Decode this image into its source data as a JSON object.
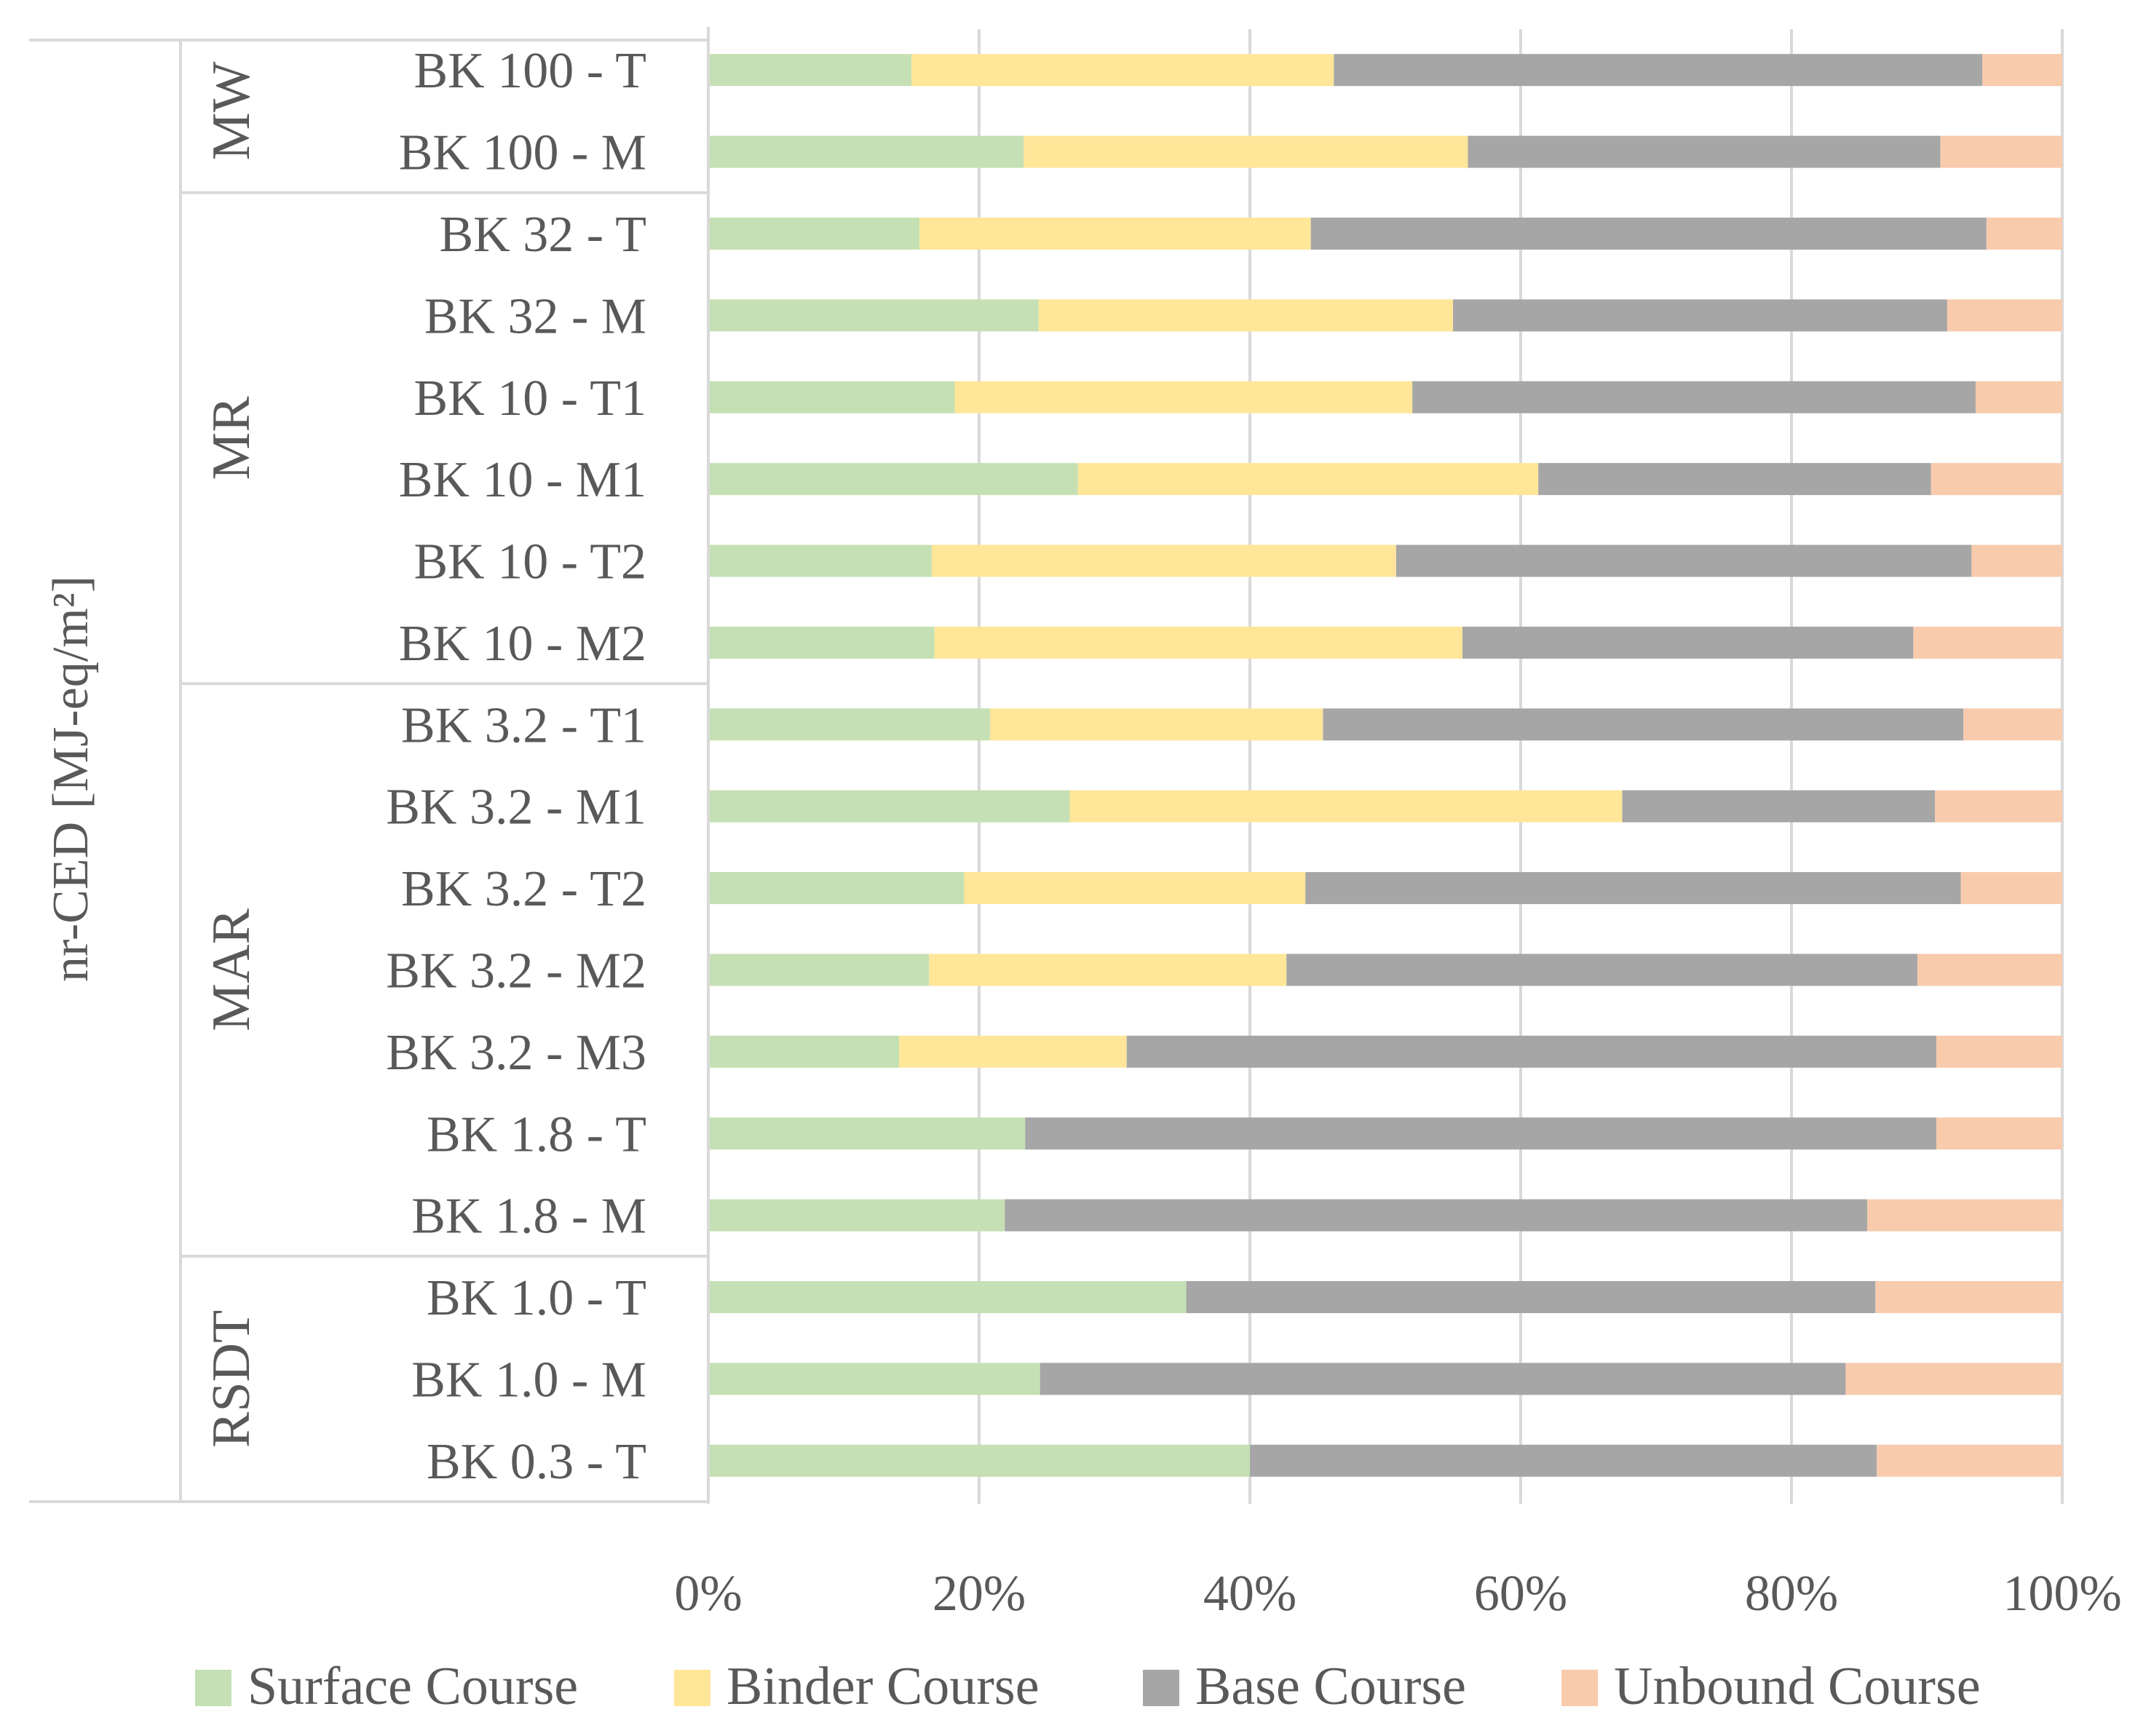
{
  "chart_data": {
    "type": "bar",
    "orientation": "horizontal",
    "stacked": "percent",
    "ylabel": "nr-CED [MJ-eq/m²]",
    "groups": [
      {
        "name": "MW",
        "categories": [
          "BK 100 - T",
          "BK 100 - M"
        ]
      },
      {
        "name": "MR",
        "categories": [
          "BK 32 - T",
          "BK 32 - M",
          "BK 10 - T1",
          "BK 10 - M1",
          "BK 10 - T2",
          "BK 10 - M2"
        ]
      },
      {
        "name": "MAR",
        "categories": [
          "BK 3.2 - T1",
          "BK 3.2 - M1",
          "BK 3.2 - T2",
          "BK 3.2 - M2",
          "BK 3.2 - M3",
          "BK 1.8 - T",
          "BK 1.8 - M"
        ]
      },
      {
        "name": "RSDT",
        "categories": [
          "BK 1.0 - T",
          "BK 1.0 - M",
          "BK 0.3 - T"
        ]
      }
    ],
    "categories": [
      "BK 100 - T",
      "BK 100 - M",
      "BK 32 - T",
      "BK 32 - M",
      "BK 10 - T1",
      "BK 10 - M1",
      "BK 10 - T2",
      "BK 10 - M2",
      "BK 3.2 - T1",
      "BK 3.2 - M1",
      "BK 3.2 - T2",
      "BK 3.2 - M2",
      "BK 3.2 - M3",
      "BK 1.8 - T",
      "BK 1.8 - M",
      "BK 1.0 - T",
      "BK 1.0 - M",
      "BK 0.3 - T"
    ],
    "series": [
      {
        "name": "Surface Course",
        "color": "#c5e0b4",
        "values": [
          15,
          23.3,
          15.6,
          24.4,
          18.2,
          27.3,
          16.5,
          16.7,
          20.8,
          26.7,
          18.9,
          16.3,
          14.1,
          23.4,
          21.9,
          35.3,
          24.5,
          40
        ]
      },
      {
        "name": "Binder Course",
        "color": "#ffe699",
        "values": [
          31.2,
          32.8,
          28.9,
          30.6,
          33.8,
          34,
          34.3,
          39,
          24.6,
          40.8,
          25.2,
          26.4,
          16.8,
          0,
          0,
          0,
          0,
          0
        ]
      },
      {
        "name": "Base Course",
        "color": "#a6a6a6",
        "values": [
          47.9,
          34.9,
          49.9,
          36.5,
          41.6,
          29,
          42.5,
          33.3,
          47.3,
          23.1,
          48.4,
          46.6,
          59.8,
          67.3,
          63.7,
          50.9,
          59.5,
          46.3
        ]
      },
      {
        "name": "Unbound Course",
        "color": "#f8cbad",
        "values": [
          5.9,
          9,
          5.6,
          8.5,
          6.4,
          9.7,
          6.7,
          11,
          7.3,
          9.4,
          7.5,
          10.7,
          9.3,
          9.3,
          14.4,
          13.8,
          16,
          13.7
        ]
      }
    ],
    "xlim": [
      0,
      100
    ],
    "x_ticks": [
      "0%",
      "20%",
      "40%",
      "60%",
      "80%",
      "100%"
    ],
    "grid": true,
    "legend": "bottom"
  }
}
